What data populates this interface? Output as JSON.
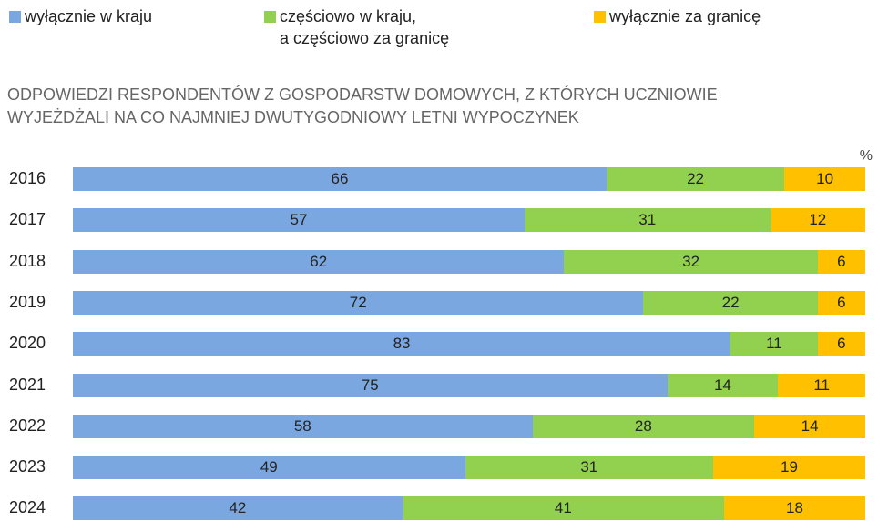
{
  "chart_data": {
    "type": "bar",
    "orientation": "horizontal",
    "stacked": true,
    "normalized": true,
    "title": "ODPOWIEDZI RESPONDENTÓW Z GOSPODARSTW DOMOWYCH, Z KTÓRYCH UCZNIOWIE\nWYJEŻDŻALI NA CO NAJMNIEJ DWUTYGODNIOWY LETNI WYPOCZYNEK",
    "unit": "%",
    "categories": [
      "2016",
      "2017",
      "2018",
      "2019",
      "2020",
      "2021",
      "2022",
      "2023",
      "2024"
    ],
    "series": [
      {
        "name": "wyłącznie w kraju",
        "color": "#7ba7e1",
        "values": [
          66,
          57,
          62,
          72,
          83,
          75,
          58,
          49,
          42
        ]
      },
      {
        "name": "częściowo w kraju,\na częściowo za granicę",
        "color": "#92d050",
        "values": [
          22,
          31,
          32,
          22,
          11,
          14,
          28,
          31,
          41
        ]
      },
      {
        "name": "wyłącznie za granicę",
        "color": "#ffc000",
        "values": [
          10,
          12,
          6,
          6,
          6,
          11,
          14,
          19,
          18
        ]
      }
    ],
    "legend": "top"
  }
}
